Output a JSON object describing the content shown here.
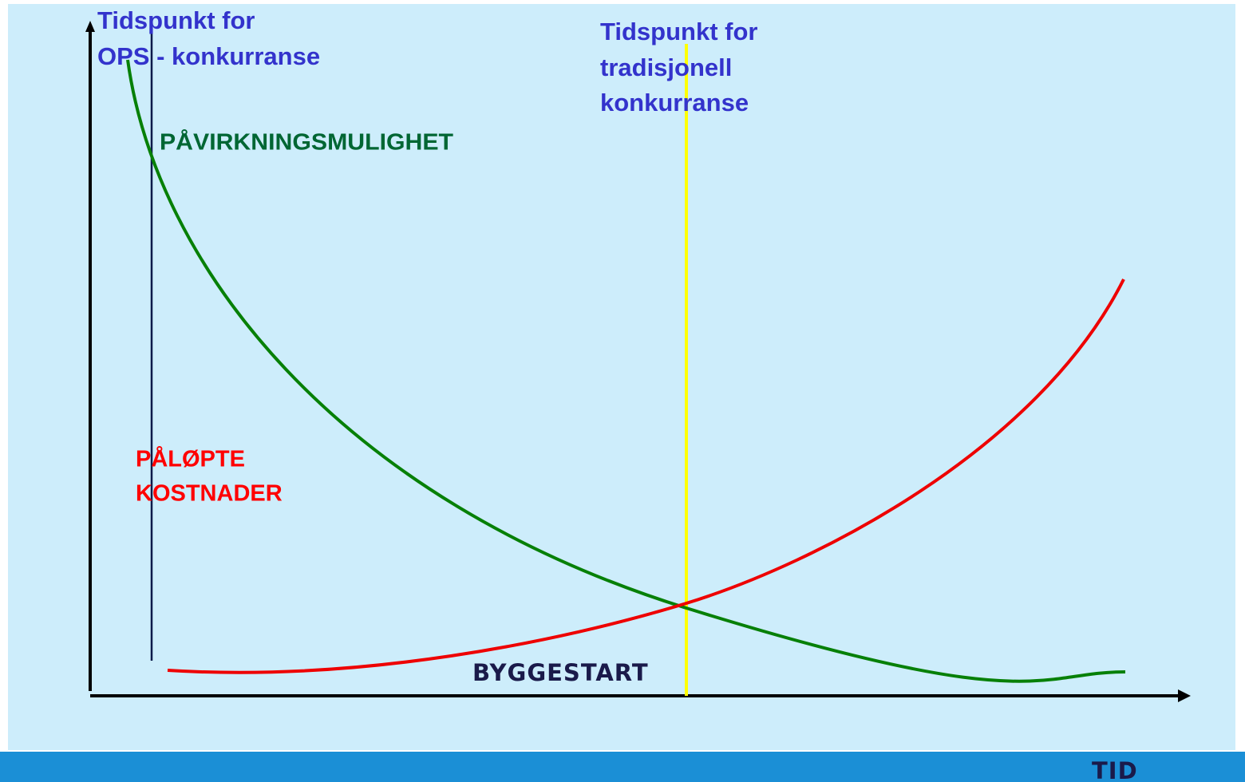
{
  "ops_label": [
    "Tidspunkt for",
    "OPS - konkurranse"
  ],
  "traditional_label": [
    "Tidspunkt for",
    "tradisjonell",
    "konkurranse"
  ],
  "influence_label": "PÅVIRKNINGSMULIGHET",
  "cost_label": [
    "PÅLØPTE",
    "KOSTNADER"
  ],
  "construction_start_label": "BYGGESTART",
  "x_axis_label": "TID"
}
